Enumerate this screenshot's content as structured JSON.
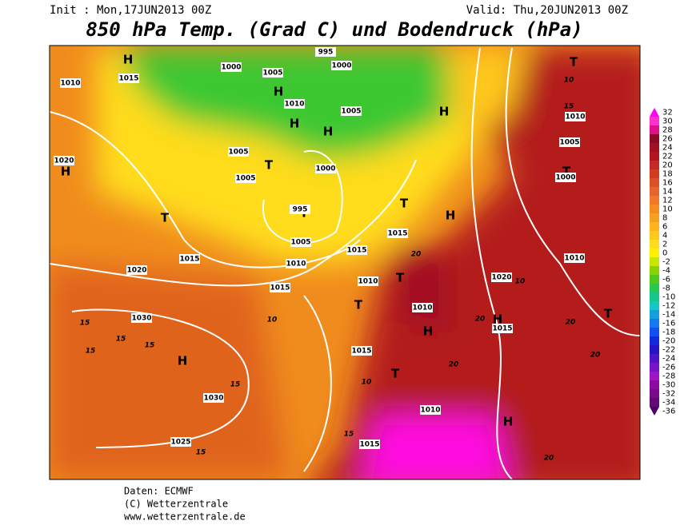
{
  "header": {
    "init": "Init : Mon,17JUN2013 00Z",
    "valid": "Valid: Thu,20JUN2013 00Z",
    "title": "850 hPa Temp. (Grad C) und Bodendruck (hPa)"
  },
  "colorbar": {
    "values": [
      32,
      30,
      28,
      26,
      24,
      22,
      20,
      18,
      16,
      14,
      12,
      10,
      8,
      6,
      4,
      2,
      0,
      -2,
      -4,
      -6,
      -8,
      -10,
      -12,
      -14,
      -16,
      -18,
      -20,
      -22,
      -24,
      -26,
      -28,
      -30,
      -32,
      -34,
      -36
    ],
    "colors": [
      "#ff00ff",
      "#ff30d0",
      "#e0108c",
      "#8c0a28",
      "#a01020",
      "#b4141e",
      "#c82828",
      "#d23c1e",
      "#dc5028",
      "#e6642d",
      "#f07828",
      "#f58c1e",
      "#f5a01e",
      "#ffb41e",
      "#ffc81e",
      "#ffdc1e",
      "#fff000",
      "#c8e600",
      "#8cd200",
      "#50c81e",
      "#28c850",
      "#14c88c",
      "#14c8c8",
      "#14a0dc",
      "#1478f0",
      "#1450f0",
      "#1428dc",
      "#2814c8",
      "#5014c8",
      "#7814c8",
      "#a014c8",
      "#8c0aa0",
      "#780a8c",
      "#640a78",
      "#500064"
    ]
  },
  "map_labels": [
    "H",
    "H",
    "H",
    "H",
    "H",
    "H",
    "H",
    "H",
    "H",
    "H",
    "H",
    "T",
    "T",
    "T",
    "T",
    "T",
    "T",
    "T",
    "T",
    "T",
    "T",
    "1010",
    "1015",
    "1020",
    "1000",
    "1005",
    "1005",
    "1010",
    "995",
    "1000",
    "1005",
    "1000",
    "1005",
    "995",
    "1005",
    "1010",
    "1015",
    "1015",
    "1010",
    "1015",
    "1020",
    "1015",
    "1030",
    "1030",
    "1025",
    "1015",
    "1015",
    "1010",
    "1015",
    "1020",
    "1010",
    "1005",
    "1010",
    "1000",
    "1010",
    "15",
    "10",
    "20",
    "20",
    "20",
    "20",
    "20",
    "20",
    "15",
    "15",
    "15",
    "15",
    "15",
    "15",
    "15",
    "10",
    "10",
    "10"
  ],
  "footer": {
    "source": "Daten: ECMWF",
    "copyright": "(C) Wetterzentrale",
    "url": "www.wetterzentrale.de"
  }
}
